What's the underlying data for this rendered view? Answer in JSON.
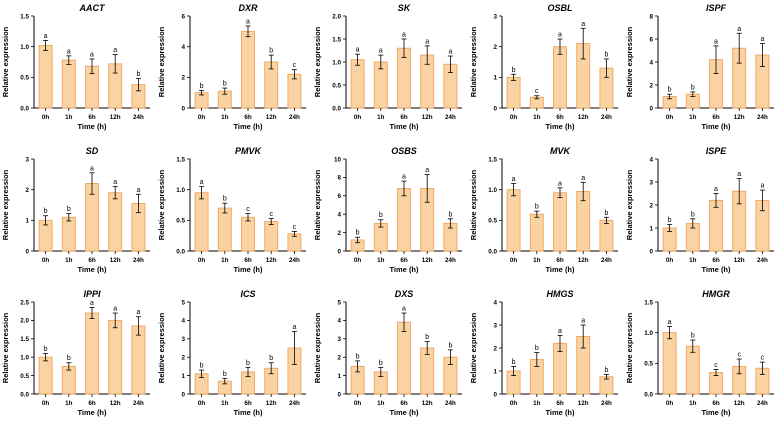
{
  "figure": {
    "background": "#ffffff",
    "bar_fill": "#FBD2A1",
    "bar_edge": "#EDA45F",
    "axis_color": "#000000",
    "text_color": "#000000",
    "categories": [
      "0h",
      "1h",
      "6h",
      "12h",
      "24h"
    ],
    "xlabel": "Time (h)",
    "ylabel": "Relative expression"
  },
  "chart_data": [
    {
      "type": "bar",
      "title": "AACT",
      "xlabel": "Time (h)",
      "ylabel": "Relative expression",
      "categories": [
        "0h",
        "1h",
        "6h",
        "12h",
        "24h"
      ],
      "values": [
        1.02,
        0.78,
        0.68,
        0.72,
        0.38
      ],
      "errors": [
        0.08,
        0.07,
        0.12,
        0.15,
        0.1
      ],
      "letters": [
        "a",
        "a",
        "a",
        "a",
        "b"
      ],
      "ylim": [
        0,
        1.5
      ],
      "yticks": [
        "0.0",
        "0.5",
        "1.0",
        "1.5"
      ]
    },
    {
      "type": "bar",
      "title": "DXR",
      "xlabel": "Time (h)",
      "ylabel": "Relative expression",
      "categories": [
        "0h",
        "1h",
        "6h",
        "12h",
        "24h"
      ],
      "values": [
        1.0,
        1.1,
        5.0,
        3.0,
        2.2
      ],
      "errors": [
        0.15,
        0.2,
        0.35,
        0.45,
        0.3
      ],
      "letters": [
        "b",
        "b",
        "a",
        "b",
        "c"
      ],
      "ylim": [
        0,
        6
      ],
      "yticks": [
        "0",
        "2",
        "4",
        "6"
      ]
    },
    {
      "type": "bar",
      "title": "SK",
      "xlabel": "Time (h)",
      "ylabel": "Relative expression",
      "categories": [
        "0h",
        "1h",
        "6h",
        "12h",
        "24h"
      ],
      "values": [
        1.05,
        1.0,
        1.3,
        1.15,
        0.95
      ],
      "errors": [
        0.12,
        0.15,
        0.2,
        0.2,
        0.18
      ],
      "letters": [
        "a",
        "a",
        "a",
        "a",
        "a"
      ],
      "ylim": [
        0,
        2.0
      ],
      "yticks": [
        "0.0",
        "0.5",
        "1.0",
        "1.5",
        "2.0"
      ]
    },
    {
      "type": "bar",
      "title": "OSBL",
      "xlabel": "Time (h)",
      "ylabel": "Relative expression",
      "categories": [
        "0h",
        "1h",
        "6h",
        "12h",
        "24h"
      ],
      "values": [
        1.0,
        0.35,
        2.0,
        2.1,
        1.3
      ],
      "errors": [
        0.1,
        0.05,
        0.25,
        0.5,
        0.3
      ],
      "letters": [
        "b",
        "c",
        "a",
        "a",
        "b"
      ],
      "ylim": [
        0,
        3
      ],
      "yticks": [
        "0",
        "1",
        "2",
        "3"
      ]
    },
    {
      "type": "bar",
      "title": "ISPF",
      "xlabel": "Time (h)",
      "ylabel": "Relative expression",
      "categories": [
        "0h",
        "1h",
        "6h",
        "12h",
        "24h"
      ],
      "values": [
        1.0,
        1.2,
        4.2,
        5.2,
        4.6
      ],
      "errors": [
        0.2,
        0.2,
        1.2,
        1.3,
        1.0
      ],
      "letters": [
        "b",
        "b",
        "a",
        "a",
        "a"
      ],
      "ylim": [
        0,
        8
      ],
      "yticks": [
        "0",
        "2",
        "4",
        "6",
        "8"
      ]
    },
    {
      "type": "bar",
      "title": "SD",
      "xlabel": "Time (h)",
      "ylabel": "Relative expression",
      "categories": [
        "0h",
        "1h",
        "6h",
        "12h",
        "24h"
      ],
      "values": [
        1.0,
        1.1,
        2.2,
        1.9,
        1.55
      ],
      "errors": [
        0.15,
        0.12,
        0.35,
        0.2,
        0.3
      ],
      "letters": [
        "b",
        "b",
        "a",
        "a",
        "a"
      ],
      "ylim": [
        0,
        3
      ],
      "yticks": [
        "0",
        "1",
        "2",
        "3"
      ]
    },
    {
      "type": "bar",
      "title": "PMVK",
      "xlabel": "Time (h)",
      "ylabel": "Relative expression",
      "categories": [
        "0h",
        "1h",
        "6h",
        "12h",
        "24h"
      ],
      "values": [
        0.95,
        0.7,
        0.55,
        0.48,
        0.28
      ],
      "errors": [
        0.1,
        0.08,
        0.06,
        0.05,
        0.04
      ],
      "letters": [
        "a",
        "b",
        "c",
        "c",
        "c"
      ],
      "ylim": [
        0,
        1.5
      ],
      "yticks": [
        "0.0",
        "0.5",
        "1.0",
        "1.5"
      ]
    },
    {
      "type": "bar",
      "title": "OSBS",
      "xlabel": "Time (h)",
      "ylabel": "Relative expression",
      "categories": [
        "0h",
        "1h",
        "6h",
        "12h",
        "24h"
      ],
      "values": [
        1.2,
        3.0,
        6.8,
        6.8,
        3.0
      ],
      "errors": [
        0.3,
        0.4,
        0.8,
        1.5,
        0.5
      ],
      "letters": [
        "b",
        "b",
        "a",
        "a",
        "b"
      ],
      "ylim": [
        0,
        10
      ],
      "yticks": [
        "0",
        "2",
        "4",
        "6",
        "8",
        "10"
      ]
    },
    {
      "type": "bar",
      "title": "MVK",
      "xlabel": "Time (h)",
      "ylabel": "Relative expression",
      "categories": [
        "0h",
        "1h",
        "6h",
        "12h",
        "24h"
      ],
      "values": [
        1.0,
        0.6,
        0.95,
        0.97,
        0.5
      ],
      "errors": [
        0.1,
        0.05,
        0.08,
        0.15,
        0.05
      ],
      "letters": [
        "a",
        "b",
        "a",
        "a",
        "b"
      ],
      "ylim": [
        0,
        1.5
      ],
      "yticks": [
        "0.0",
        "0.5",
        "1.0",
        "1.5"
      ]
    },
    {
      "type": "bar",
      "title": "ISPE",
      "xlabel": "Time (h)",
      "ylabel": "Relative expression",
      "categories": [
        "0h",
        "1h",
        "6h",
        "12h",
        "24h"
      ],
      "values": [
        1.0,
        1.2,
        2.2,
        2.6,
        2.2
      ],
      "errors": [
        0.15,
        0.2,
        0.3,
        0.55,
        0.45
      ],
      "letters": [
        "b",
        "b",
        "a",
        "a",
        "a"
      ],
      "ylim": [
        0,
        4
      ],
      "yticks": [
        "0",
        "1",
        "2",
        "3",
        "4"
      ]
    },
    {
      "type": "bar",
      "title": "IPPI",
      "xlabel": "Time (h)",
      "ylabel": "Relative expression",
      "categories": [
        "0h",
        "1h",
        "6h",
        "12h",
        "24h"
      ],
      "values": [
        1.0,
        0.75,
        2.2,
        2.0,
        1.85
      ],
      "errors": [
        0.1,
        0.1,
        0.15,
        0.2,
        0.25
      ],
      "letters": [
        "b",
        "b",
        "a",
        "a",
        "a"
      ],
      "ylim": [
        0,
        2.5
      ],
      "yticks": [
        "0.0",
        "0.5",
        "1.0",
        "1.5",
        "2.0",
        "2.5"
      ]
    },
    {
      "type": "bar",
      "title": "ICS",
      "xlabel": "Time (h)",
      "ylabel": "Relative expression",
      "categories": [
        "0h",
        "1h",
        "6h",
        "12h",
        "24h"
      ],
      "values": [
        1.1,
        0.7,
        1.2,
        1.4,
        2.5
      ],
      "errors": [
        0.2,
        0.15,
        0.25,
        0.3,
        0.9
      ],
      "letters": [
        "b",
        "b",
        "b",
        "b",
        "a"
      ],
      "ylim": [
        0,
        5
      ],
      "yticks": [
        "0",
        "1",
        "2",
        "3",
        "4",
        "5"
      ]
    },
    {
      "type": "bar",
      "title": "DXS",
      "xlabel": "Time (h)",
      "ylabel": "Relative expression",
      "categories": [
        "0h",
        "1h",
        "6h",
        "12h",
        "24h"
      ],
      "values": [
        1.5,
        1.2,
        3.9,
        2.5,
        2.0
      ],
      "errors": [
        0.3,
        0.25,
        0.5,
        0.35,
        0.4
      ],
      "letters": [
        "b",
        "b",
        "a",
        "b",
        "b"
      ],
      "ylim": [
        0,
        5
      ],
      "yticks": [
        "0",
        "1",
        "2",
        "3",
        "4",
        "5"
      ]
    },
    {
      "type": "bar",
      "title": "HMGS",
      "xlabel": "Time (h)",
      "ylabel": "Relative expression",
      "categories": [
        "0h",
        "1h",
        "6h",
        "12h",
        "24h"
      ],
      "values": [
        1.0,
        1.5,
        2.2,
        2.5,
        0.75
      ],
      "errors": [
        0.2,
        0.3,
        0.35,
        0.5,
        0.1
      ],
      "letters": [
        "b",
        "b",
        "a",
        "a",
        "b"
      ],
      "ylim": [
        0,
        4
      ],
      "yticks": [
        "0",
        "1",
        "2",
        "3",
        "4"
      ]
    },
    {
      "type": "bar",
      "title": "HMGR",
      "xlabel": "Time (h)",
      "ylabel": "Relative expression",
      "categories": [
        "0h",
        "1h",
        "6h",
        "12h",
        "24h"
      ],
      "values": [
        1.0,
        0.78,
        0.35,
        0.45,
        0.42
      ],
      "errors": [
        0.1,
        0.1,
        0.05,
        0.12,
        0.1
      ],
      "letters": [
        "a",
        "b",
        "c",
        "c",
        "c"
      ],
      "ylim": [
        0,
        1.5
      ],
      "yticks": [
        "0.0",
        "0.5",
        "1.0",
        "1.5"
      ]
    }
  ]
}
